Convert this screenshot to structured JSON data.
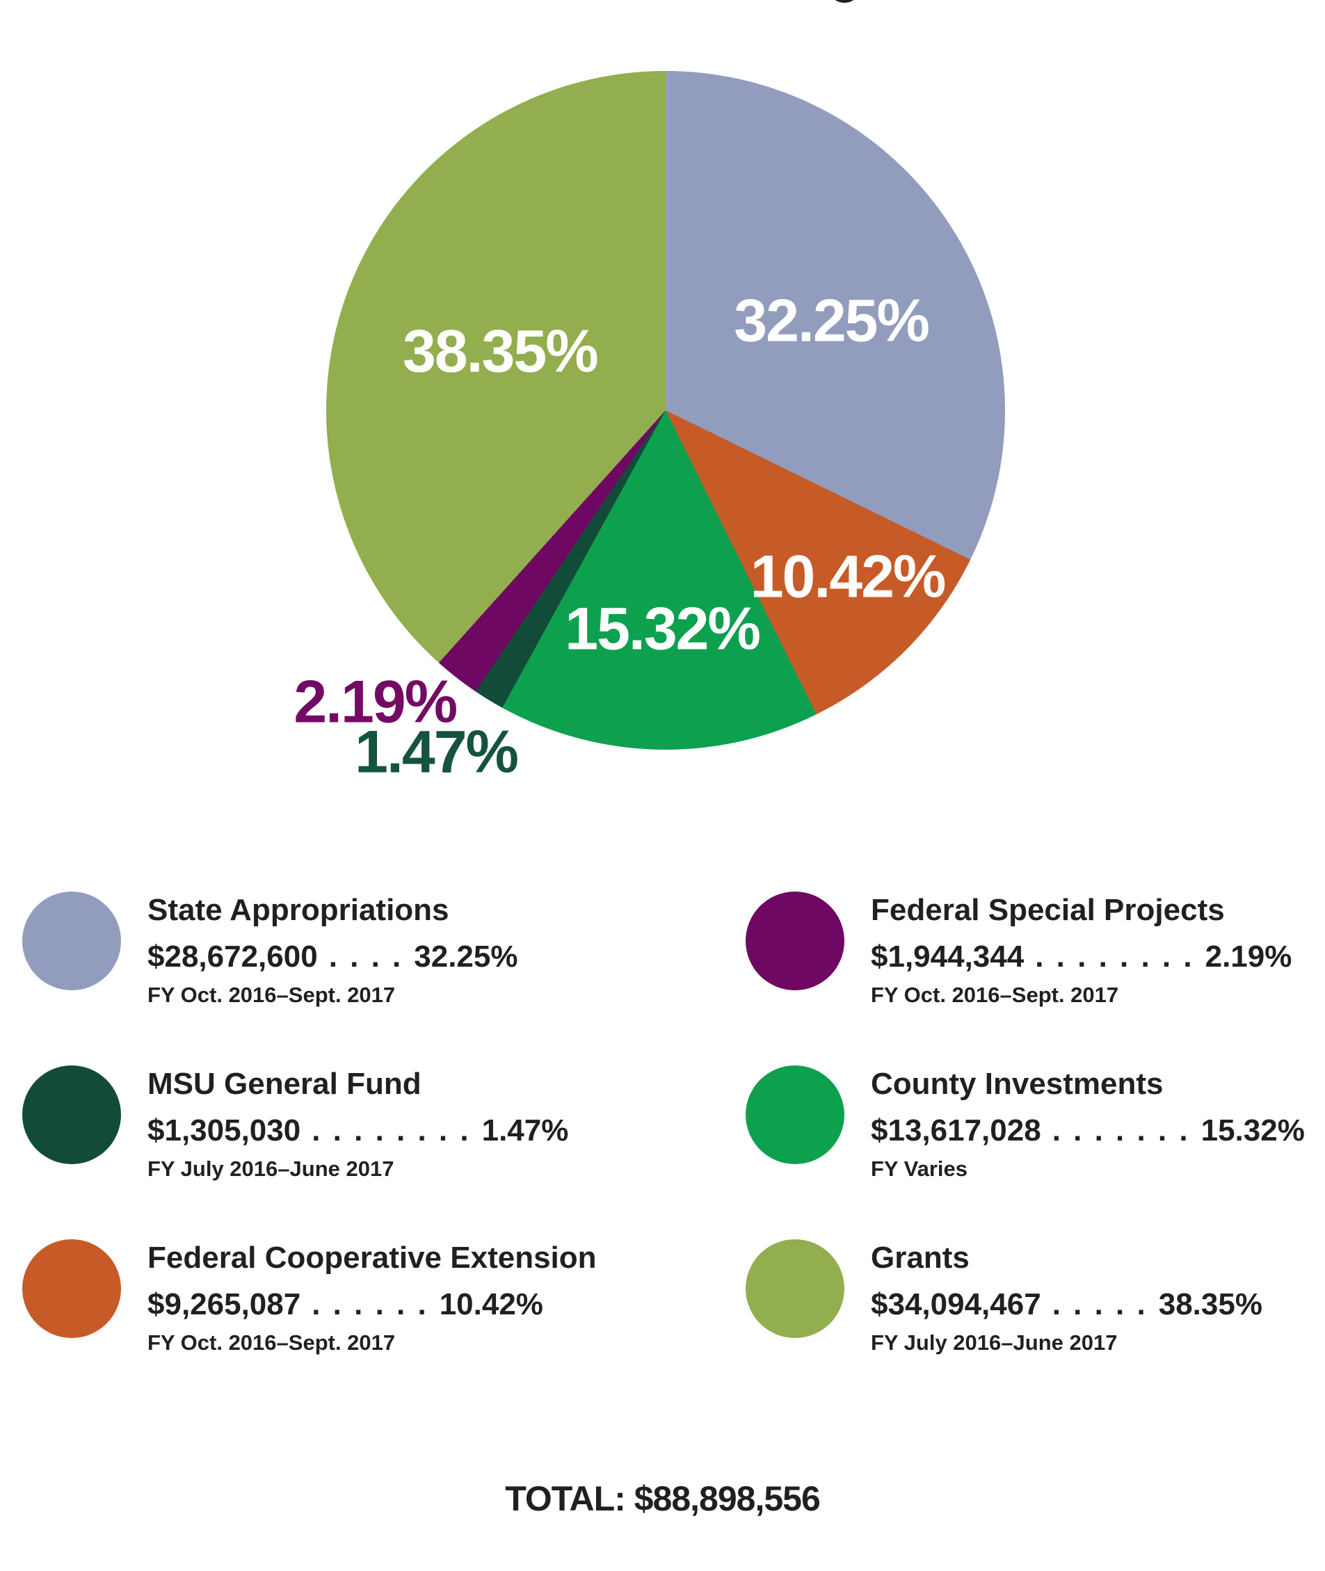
{
  "page": {
    "background": "#ffffff",
    "text_color": "#231f20",
    "total_label": "TOTAL: $88,898,556"
  },
  "chart_data": {
    "type": "pie",
    "title": "",
    "direction": "clockwise",
    "start_angle_deg": 0,
    "total_label": "TOTAL: $88,898,556",
    "total_value": 88898556,
    "legend_position": "below, two columns",
    "slices": [
      {
        "label": "State Appropriations",
        "value": 28672600,
        "amount": "$28,672,600",
        "dots": ". . . .",
        "pct": 32.25,
        "pct_label": "32.25%",
        "fy": "FY Oct. 2016–Sept. 2017",
        "color": "#929CBC",
        "label_color": "#FFFFFF"
      },
      {
        "label": "Federal Cooperative Extension",
        "value": 9265087,
        "amount": "$9,265,087",
        "dots": ". . . . . .",
        "pct": 10.42,
        "pct_label": "10.42%",
        "fy": "FY Oct. 2016–Sept. 2017",
        "color": "#C75B28",
        "label_color": "#FFFFFF"
      },
      {
        "label": "County Investments",
        "value": 13617028,
        "amount": "$13,617,028",
        "dots": ". . . . . . .",
        "pct": 15.32,
        "pct_label": "15.32%",
        "fy": "FY Varies",
        "color": "#0DA14F",
        "label_color": "#FFFFFF"
      },
      {
        "label": "MSU General Fund",
        "value": 1305030,
        "amount": "$1,305,030",
        "dots": ". . . . . . . .",
        "pct": 1.47,
        "pct_label": "1.47%",
        "fy": "FY July 2016–June 2017",
        "color": "#124C38",
        "label_color": "#155240"
      },
      {
        "label": "Federal Special Projects",
        "value": 1944344,
        "amount": "$1,944,344",
        "dots": ". . . . . . . .",
        "pct": 2.19,
        "pct_label": "2.19%",
        "fy": "FY Oct. 2016–Sept. 2017",
        "color": "#6E0862",
        "label_color": "#730B64"
      },
      {
        "label": "Grants",
        "value": 34094467,
        "amount": "$34,094,467",
        "dots": ". . . . .",
        "pct": 38.35,
        "pct_label": "38.35%",
        "fy": "FY July 2016–June 2017",
        "color": "#93AE4E",
        "label_color": "#FFFFFF"
      }
    ]
  }
}
